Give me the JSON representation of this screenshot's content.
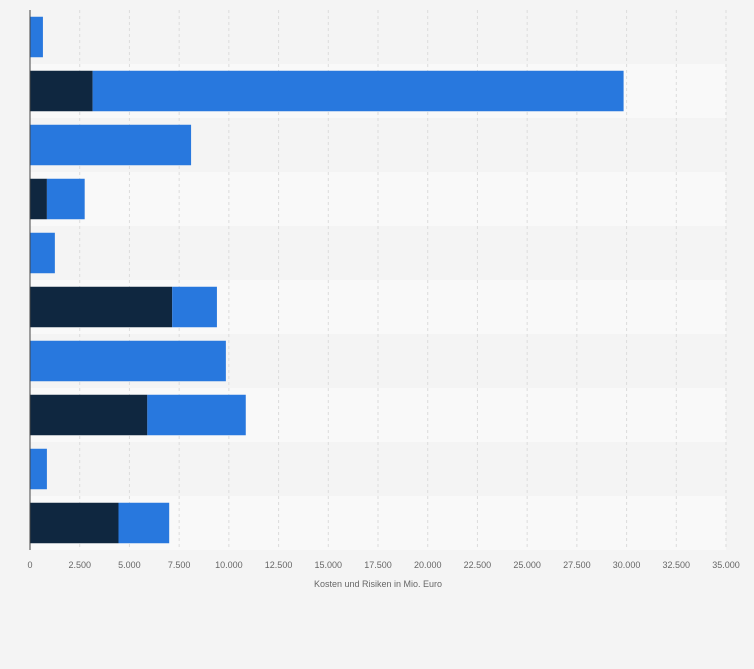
{
  "chart_data": {
    "type": "bar",
    "orientation": "horizontal",
    "stacked": true,
    "title": "",
    "xlabel": "Kosten und Risiken in Mio. Euro",
    "ylabel": "",
    "xlim": [
      0,
      35000
    ],
    "x_ticks": [
      0,
      2500,
      5000,
      7500,
      10000,
      12500,
      15000,
      17500,
      20000,
      22500,
      25000,
      27500,
      30000,
      32500,
      35000
    ],
    "x_tick_labels": [
      "0",
      "2.500",
      "5.000",
      "7.500",
      "10.000",
      "12.500",
      "15.000",
      "17.500",
      "20.000",
      "22.500",
      "25.000",
      "27.500",
      "30.000",
      "32.500",
      "35.000"
    ],
    "grid": true,
    "categories": [
      "",
      "",
      "",
      "",
      "",
      "",
      "",
      "",
      "",
      ""
    ],
    "series": [
      {
        "values": [
          0,
          3150,
          0,
          850,
          0,
          7150,
          0,
          5900,
          0,
          4450
        ],
        "color": "#0f2740"
      },
      {
        "values": [
          650,
          26700,
          8100,
          1900,
          1250,
          2250,
          9850,
          4950,
          850,
          2550
        ],
        "color": "#2878de"
      }
    ],
    "band_colors": [
      "#f4f4f4",
      "#f9f9f9"
    ]
  }
}
